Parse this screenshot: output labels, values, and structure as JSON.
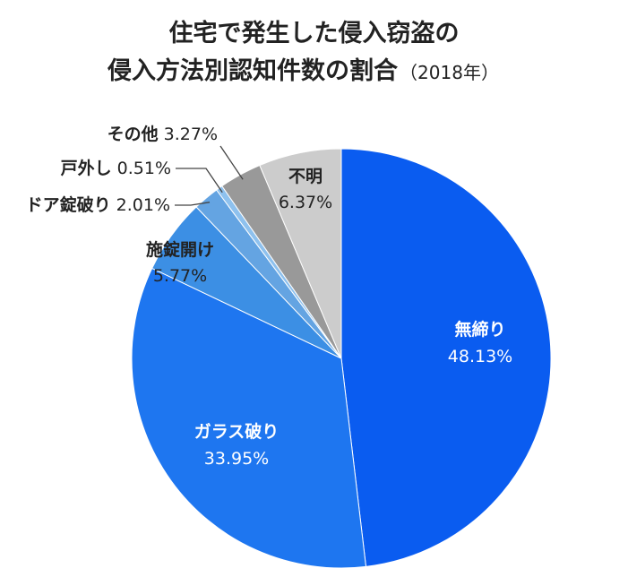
{
  "title_line1": "住宅で発生した侵入窃盗の",
  "title_line2": "侵入方法別認知件数の割合",
  "title_year": "（2018年）",
  "chart_data": {
    "type": "pie",
    "title": "住宅で発生した侵入窃盗の侵入方法別認知件数の割合（2018年）",
    "slices": [
      {
        "label": "無締り",
        "value": 48.13,
        "value_label": "48.13%",
        "color": "#0A5CF0"
      },
      {
        "label": "ガラス破り",
        "value": 33.95,
        "value_label": "33.95%",
        "color": "#1E76F0"
      },
      {
        "label": "施錠開け",
        "value": 5.77,
        "value_label": "5.77%",
        "color": "#3C8FE4"
      },
      {
        "label": "ドア錠破り",
        "value": 2.01,
        "value_label": "2.01%",
        "color": "#64A4E2"
      },
      {
        "label": "戸外し",
        "value": 0.51,
        "value_label": "0.51%",
        "color": "#8EC1EE"
      },
      {
        "label": "その他",
        "value": 3.27,
        "value_label": "3.27%",
        "color": "#999999"
      },
      {
        "label": "不明",
        "value": 6.37,
        "value_label": "6.37%",
        "color": "#CCCCCC"
      }
    ],
    "start": "12 o'clock",
    "direction": "clockwise",
    "legend": "none"
  }
}
